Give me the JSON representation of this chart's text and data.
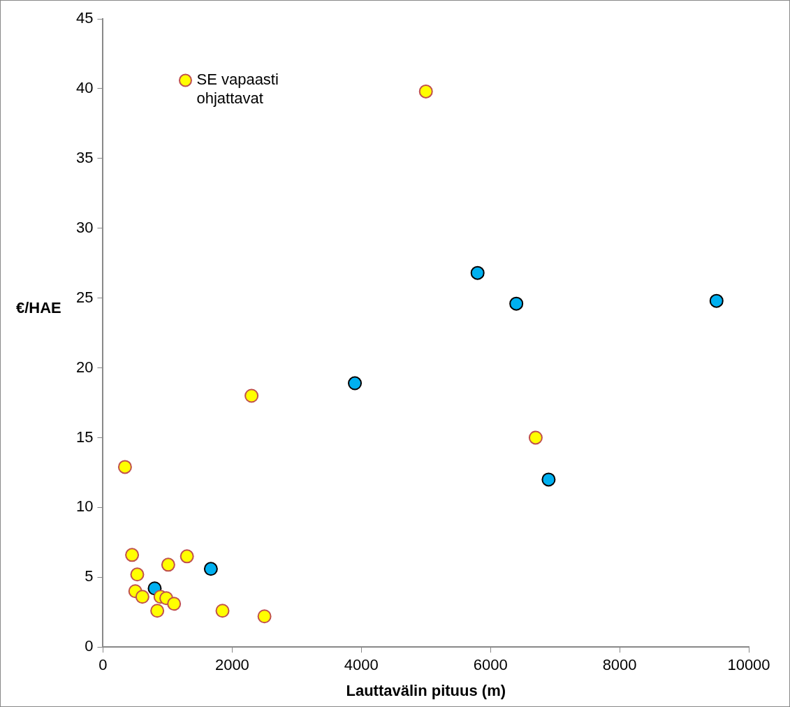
{
  "chart_data": {
    "type": "scatter",
    "xlabel": "Lauttavälin pituus (m)",
    "ylabel": "€/HAE",
    "xlim": [
      0,
      10000
    ],
    "xticks": [
      0,
      2000,
      4000,
      6000,
      8000,
      10000
    ],
    "ylim": [
      0,
      45
    ],
    "yticks": [
      0,
      5,
      10,
      15,
      20,
      25,
      30,
      35,
      40,
      45
    ],
    "grid": false,
    "legend": "top left",
    "marker": "circle",
    "series": [
      {
        "name": "SE vapaasti ohjattavat",
        "color": "#ffff00",
        "x": [
          340,
          450,
          530,
          500,
          610,
          1010,
          1300,
          890,
          980,
          1100,
          840,
          1850,
          2500,
          2300,
          5000,
          6700
        ],
        "values": [
          12.9,
          6.6,
          5.2,
          4.0,
          3.6,
          5.9,
          6.5,
          3.6,
          3.5,
          3.1,
          2.6,
          2.6,
          2.2,
          18.0,
          39.8,
          15.0
        ]
      },
      {
        "color": "#00b0f0",
        "x": [
          800,
          1670,
          3900,
          5800,
          6400,
          9500,
          6900
        ],
        "values": [
          4.2,
          5.6,
          18.9,
          26.8,
          24.6,
          24.8,
          12.0
        ]
      }
    ]
  }
}
